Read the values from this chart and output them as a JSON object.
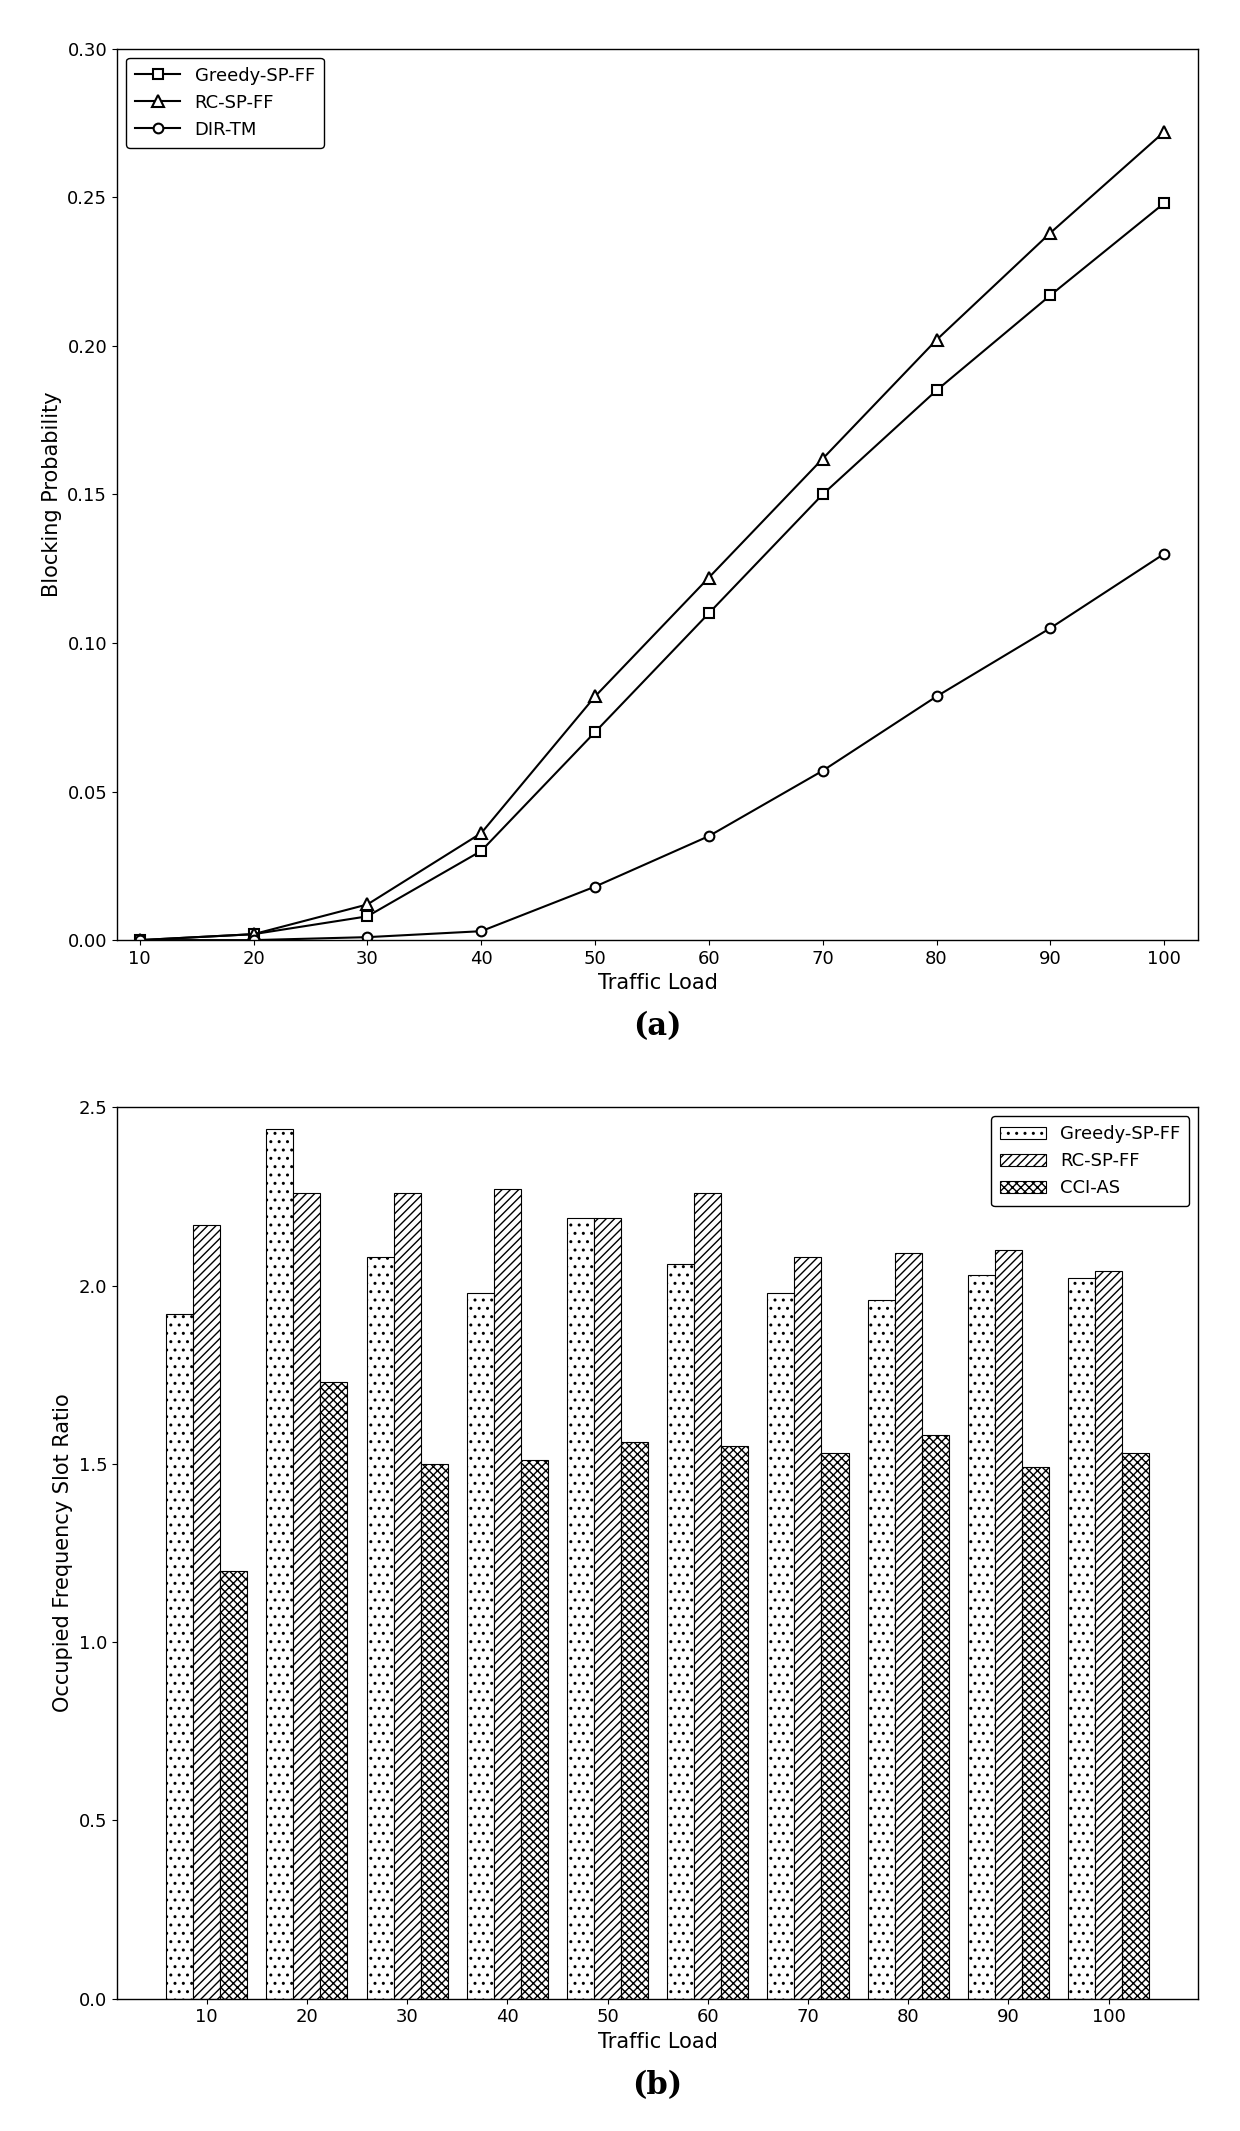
{
  "chart_a": {
    "x": [
      10,
      20,
      30,
      40,
      50,
      60,
      70,
      80,
      90,
      100
    ],
    "greedy_sp_ff": [
      0.0,
      0.002,
      0.008,
      0.03,
      0.07,
      0.11,
      0.15,
      0.185,
      0.217,
      0.248
    ],
    "rc_sp_ff": [
      0.0,
      0.002,
      0.012,
      0.036,
      0.082,
      0.122,
      0.162,
      0.202,
      0.238,
      0.272
    ],
    "dir_tm": [
      0.0,
      0.0,
      0.001,
      0.003,
      0.018,
      0.035,
      0.057,
      0.082,
      0.105,
      0.13
    ],
    "xlabel": "Traffic Load",
    "ylabel": "Blocking Probability",
    "ylim": [
      0,
      0.3
    ],
    "yticks": [
      0.0,
      0.05,
      0.1,
      0.15,
      0.2,
      0.25,
      0.3
    ],
    "xticks": [
      10,
      20,
      30,
      40,
      50,
      60,
      70,
      80,
      90,
      100
    ],
    "label_a": "(a)",
    "legend_labels": [
      "Greedy-SP-FF",
      "RC-SP-FF",
      "DIR-TM"
    ]
  },
  "chart_b": {
    "x": [
      10,
      20,
      30,
      40,
      50,
      60,
      70,
      80,
      90,
      100
    ],
    "greedy_sp_ff": [
      1.92,
      2.44,
      2.08,
      1.98,
      2.19,
      2.06,
      1.98,
      1.96,
      2.03,
      2.02
    ],
    "rc_sp_ff": [
      2.17,
      2.26,
      2.26,
      2.27,
      2.19,
      2.26,
      2.08,
      2.09,
      2.1,
      2.04
    ],
    "cci_as": [
      1.2,
      1.73,
      1.5,
      1.51,
      1.56,
      1.55,
      1.53,
      1.58,
      1.49,
      1.53
    ],
    "xlabel": "Traffic Load",
    "ylabel": "Occupied Frequency Slot Ratio",
    "ylim": [
      0,
      2.5
    ],
    "yticks": [
      0.0,
      0.5,
      1.0,
      1.5,
      2.0,
      2.5
    ],
    "label_b": "(b)",
    "legend_labels": [
      "Greedy-SP-FF",
      "RC-SP-FF",
      "CCI-AS"
    ]
  },
  "line_color": "#000000",
  "bar_edge_color": "#000000",
  "background_color": "#ffffff"
}
